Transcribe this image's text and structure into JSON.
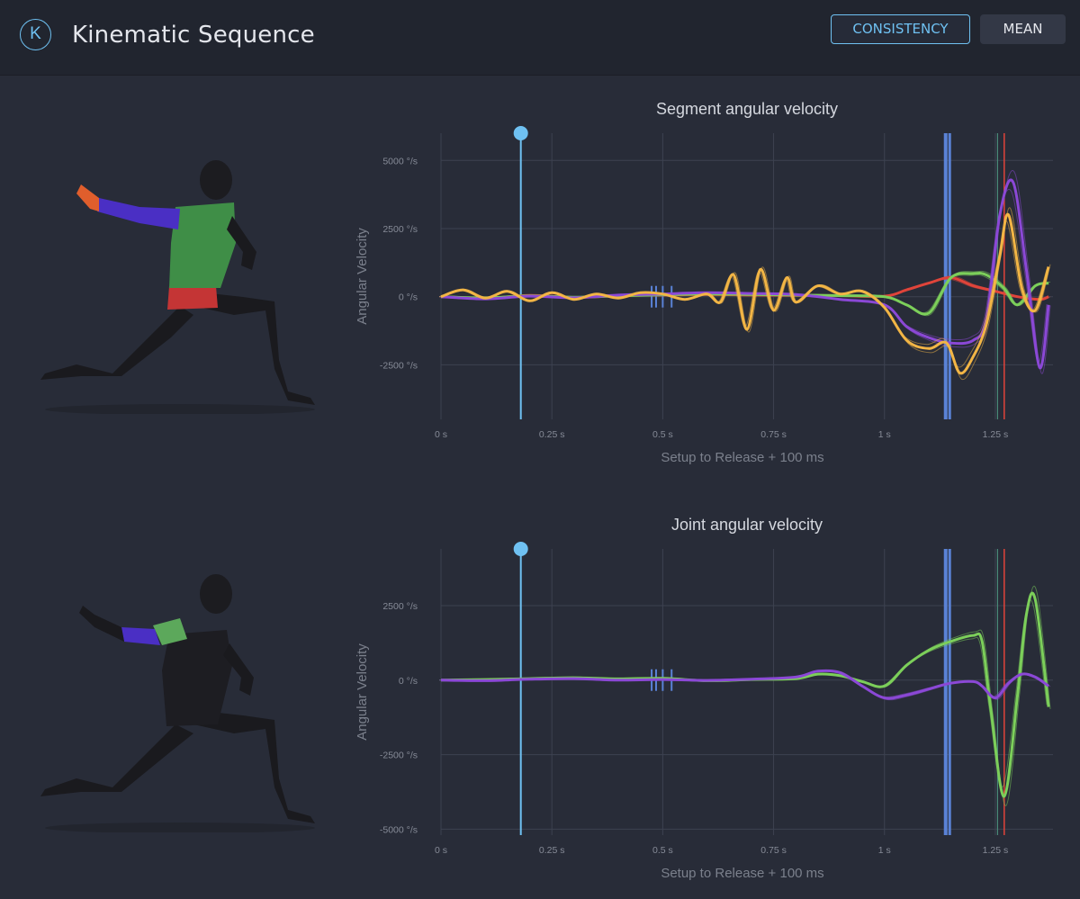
{
  "app": {
    "logo_letter": "K",
    "title": "Kinematic Sequence"
  },
  "toolbar": {
    "consistency_label": "CONSISTENCY",
    "mean_label": "MEAN"
  },
  "colors": {
    "accent": "#6fc1f2",
    "pelvis": "#e0443a",
    "torso": "#7ccf5a",
    "arm": "#8b48d6",
    "hand": "#f2b545",
    "event_marker": "#5a82d6",
    "release_marker": "#e0443a"
  },
  "chart_data": [
    {
      "type": "line",
      "title": "Segment angular velocity",
      "xlabel": "Setup to Release + 100 ms",
      "ylabel": "Angular Velocity",
      "xlim": [
        0,
        1.38
      ],
      "ylim": [
        -4500,
        6000
      ],
      "x_ticks": [
        0,
        0.25,
        0.5,
        0.75,
        1,
        1.25
      ],
      "x_tick_labels": [
        "0 s",
        "0.25 s",
        "0.5 s",
        "0.75 s",
        "1 s",
        "1.25 s"
      ],
      "y_ticks": [
        5000,
        2500,
        0,
        -2500
      ],
      "y_tick_labels": [
        "5000 °/s",
        "2500 °/s",
        "0 °/s",
        "-2500 °/s"
      ],
      "grid": true,
      "events": [
        {
          "x": 0.18,
          "kind": "setup-marker"
        },
        {
          "x": 1.14,
          "kind": "event-band"
        },
        {
          "x": 1.255,
          "kind": "event-line"
        },
        {
          "x": 1.27,
          "kind": "release-line"
        }
      ],
      "series": [
        {
          "color": "#e0443a",
          "x": [
            0,
            0.1,
            0.2,
            0.3,
            0.4,
            0.5,
            0.6,
            0.7,
            0.8,
            0.9,
            1.0,
            1.05,
            1.1,
            1.15,
            1.2,
            1.25,
            1.3,
            1.35,
            1.37
          ],
          "y": [
            0,
            -60,
            50,
            -30,
            40,
            60,
            80,
            60,
            50,
            40,
            20,
            250,
            500,
            700,
            400,
            200,
            0,
            -100,
            0
          ]
        },
        {
          "color": "#7ccf5a",
          "x": [
            0,
            0.1,
            0.2,
            0.3,
            0.4,
            0.5,
            0.6,
            0.7,
            0.8,
            0.9,
            1.0,
            1.05,
            1.1,
            1.15,
            1.2,
            1.23,
            1.27,
            1.3,
            1.34,
            1.37
          ],
          "y": [
            0,
            -40,
            30,
            -20,
            30,
            70,
            100,
            80,
            60,
            40,
            0,
            -300,
            -600,
            700,
            850,
            800,
            300,
            -300,
            400,
            500
          ]
        },
        {
          "color": "#8b48d6",
          "x": [
            0,
            0.1,
            0.2,
            0.3,
            0.4,
            0.5,
            0.6,
            0.7,
            0.8,
            0.9,
            1.0,
            1.05,
            1.1,
            1.15,
            1.2,
            1.23,
            1.26,
            1.29,
            1.32,
            1.35,
            1.37
          ],
          "y": [
            0,
            -80,
            20,
            -40,
            60,
            100,
            150,
            120,
            80,
            -100,
            -300,
            -1100,
            -1500,
            -1700,
            -1600,
            -800,
            3000,
            4200,
            1000,
            -2600,
            -300
          ]
        },
        {
          "color": "#f2b545",
          "x": [
            0,
            0.05,
            0.1,
            0.15,
            0.2,
            0.25,
            0.3,
            0.35,
            0.4,
            0.45,
            0.5,
            0.55,
            0.6,
            0.63,
            0.66,
            0.69,
            0.72,
            0.75,
            0.78,
            0.8,
            0.85,
            0.9,
            0.95,
            1.0,
            1.05,
            1.1,
            1.14,
            1.17,
            1.2,
            1.23,
            1.26,
            1.28,
            1.31,
            1.34,
            1.37
          ],
          "y": [
            0,
            250,
            -50,
            200,
            -150,
            150,
            -100,
            100,
            -50,
            150,
            100,
            -100,
            100,
            -200,
            800,
            -1200,
            1000,
            -500,
            700,
            -200,
            400,
            100,
            200,
            -400,
            -1600,
            -1900,
            -1700,
            -2800,
            -2200,
            -1000,
            1500,
            3000,
            300,
            -500,
            1100
          ]
        }
      ]
    },
    {
      "type": "line",
      "title": "Joint angular velocity",
      "xlabel": "Setup to Release + 100 ms",
      "ylabel": "Angular Velocity",
      "xlim": [
        0,
        1.38
      ],
      "ylim": [
        -5200,
        4400
      ],
      "x_ticks": [
        0,
        0.25,
        0.5,
        0.75,
        1,
        1.25
      ],
      "x_tick_labels": [
        "0 s",
        "0.25 s",
        "0.5 s",
        "0.75 s",
        "1 s",
        "1.25 s"
      ],
      "y_ticks": [
        2500,
        0,
        -2500,
        -5000
      ],
      "y_tick_labels": [
        "2500 °/s",
        "0 °/s",
        "-2500 °/s",
        "-5000 °/s"
      ],
      "grid": true,
      "events": [
        {
          "x": 0.18,
          "kind": "setup-marker"
        },
        {
          "x": 1.14,
          "kind": "event-band"
        },
        {
          "x": 1.255,
          "kind": "event-line"
        },
        {
          "x": 1.27,
          "kind": "release-line"
        }
      ],
      "series": [
        {
          "color": "#7ccf5a",
          "x": [
            0,
            0.1,
            0.2,
            0.3,
            0.4,
            0.5,
            0.6,
            0.7,
            0.8,
            0.85,
            0.9,
            0.95,
            1.0,
            1.05,
            1.1,
            1.15,
            1.2,
            1.22,
            1.24,
            1.27,
            1.3,
            1.32,
            1.34,
            1.37
          ],
          "y": [
            0,
            20,
            50,
            80,
            40,
            60,
            -20,
            20,
            50,
            200,
            150,
            -50,
            -200,
            500,
            1000,
            1300,
            1500,
            1300,
            -1000,
            -3900,
            -500,
            2200,
            2700,
            -900
          ]
        },
        {
          "color": "#8b48d6",
          "x": [
            0,
            0.1,
            0.2,
            0.3,
            0.4,
            0.5,
            0.6,
            0.7,
            0.8,
            0.85,
            0.9,
            0.95,
            1.0,
            1.05,
            1.1,
            1.15,
            1.2,
            1.22,
            1.25,
            1.28,
            1.31,
            1.34,
            1.37
          ],
          "y": [
            0,
            -20,
            30,
            50,
            0,
            20,
            -10,
            30,
            100,
            300,
            250,
            -200,
            -600,
            -500,
            -300,
            -100,
            -50,
            -200,
            -600,
            -100,
            200,
            100,
            -200
          ]
        }
      ]
    }
  ]
}
